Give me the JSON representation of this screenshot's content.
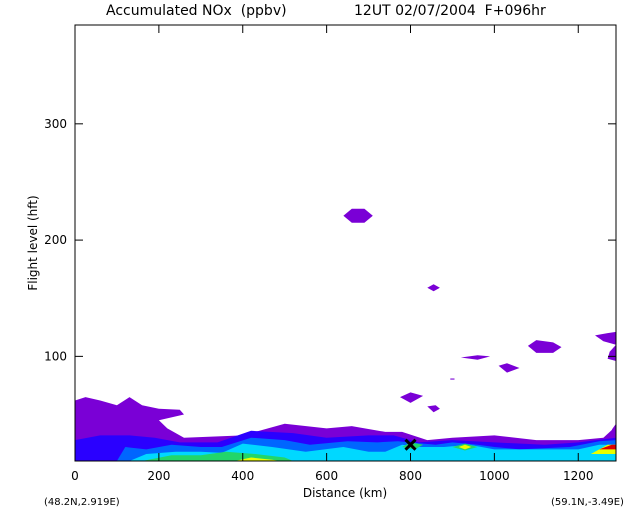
{
  "title_left": "Accumulated NOx  (ppbv)",
  "title_right": "12UT 02/07/2004  F+096hr",
  "corner_left": "(48.2N,2.919E)",
  "corner_right": "(59.1N,-3.49E)",
  "colors": {
    "purple": "#7a00d6",
    "dark_blue": "#2a00ff",
    "blue": "#0066ff",
    "cyan": "#00d8ff",
    "green": "#22d66a",
    "yellow": "#e8ff00",
    "orange": "#ffb000",
    "red": "#e00000",
    "marker": "#000000"
  },
  "chart_data": {
    "type": "heatmap",
    "title": "Accumulated NOx  (ppbv)",
    "xlabel": "Distance  (km)",
    "ylabel": "Flight level  (hft)",
    "xlim": [
      0,
      1290
    ],
    "ylim": [
      10,
      385
    ],
    "xticks": [
      0,
      200,
      400,
      600,
      800,
      1000,
      1200
    ],
    "yticks": [
      100,
      200,
      300
    ],
    "marker": {
      "symbol": "X",
      "x": 800,
      "y": 24
    },
    "blobs": [
      {
        "level": "purple",
        "points": [
          [
            0,
            10
          ],
          [
            0,
            62
          ],
          [
            25,
            65
          ],
          [
            60,
            62
          ],
          [
            100,
            58
          ],
          [
            130,
            65
          ],
          [
            160,
            58
          ],
          [
            200,
            55
          ],
          [
            250,
            54
          ],
          [
            260,
            50
          ],
          [
            200,
            45
          ],
          [
            220,
            38
          ],
          [
            260,
            30
          ],
          [
            400,
            32
          ],
          [
            500,
            42
          ],
          [
            600,
            38
          ],
          [
            660,
            40
          ],
          [
            740,
            35
          ],
          [
            780,
            35
          ],
          [
            840,
            28
          ],
          [
            900,
            30
          ],
          [
            1000,
            32
          ],
          [
            1100,
            28
          ],
          [
            1200,
            28
          ],
          [
            1260,
            30
          ],
          [
            1290,
            40
          ],
          [
            1290,
            10
          ]
        ]
      },
      {
        "level": "dark_blue",
        "points": [
          [
            0,
            10
          ],
          [
            0,
            28
          ],
          [
            60,
            32
          ],
          [
            130,
            32
          ],
          [
            190,
            30
          ],
          [
            250,
            26
          ],
          [
            340,
            26
          ],
          [
            420,
            36
          ],
          [
            520,
            34
          ],
          [
            600,
            30
          ],
          [
            700,
            32
          ],
          [
            760,
            32
          ],
          [
            820,
            26
          ],
          [
            900,
            28
          ],
          [
            1000,
            26
          ],
          [
            1120,
            24
          ],
          [
            1200,
            26
          ],
          [
            1290,
            30
          ],
          [
            1290,
            10
          ]
        ]
      },
      {
        "level": "blue",
        "points": [
          [
            100,
            10
          ],
          [
            120,
            22
          ],
          [
            170,
            20
          ],
          [
            230,
            24
          ],
          [
            300,
            22
          ],
          [
            350,
            22
          ],
          [
            420,
            30
          ],
          [
            500,
            28
          ],
          [
            560,
            24
          ],
          [
            650,
            27
          ],
          [
            720,
            26
          ],
          [
            770,
            27
          ],
          [
            860,
            24
          ],
          [
            900,
            26
          ],
          [
            960,
            24
          ],
          [
            1000,
            22
          ],
          [
            1060,
            20
          ],
          [
            1180,
            22
          ],
          [
            1250,
            27
          ],
          [
            1290,
            28
          ],
          [
            1290,
            10
          ]
        ]
      },
      {
        "level": "cyan",
        "points": [
          [
            130,
            10
          ],
          [
            170,
            16
          ],
          [
            240,
            18
          ],
          [
            300,
            18
          ],
          [
            350,
            17
          ],
          [
            400,
            25
          ],
          [
            470,
            22
          ],
          [
            550,
            18
          ],
          [
            640,
            22
          ],
          [
            700,
            18
          ],
          [
            740,
            18
          ],
          [
            780,
            24
          ],
          [
            820,
            22
          ],
          [
            880,
            22
          ],
          [
            940,
            24
          ],
          [
            1000,
            20
          ],
          [
            1200,
            20
          ],
          [
            1250,
            24
          ],
          [
            1290,
            24
          ],
          [
            1290,
            10
          ]
        ]
      },
      {
        "level": "green",
        "points": [
          [
            160,
            10
          ],
          [
            230,
            15
          ],
          [
            300,
            15
          ],
          [
            360,
            18
          ],
          [
            430,
            16
          ],
          [
            500,
            13
          ],
          [
            520,
            10
          ]
        ]
      },
      {
        "level": "yellow",
        "points": [
          [
            380,
            10
          ],
          [
            420,
            13
          ],
          [
            470,
            11
          ],
          [
            490,
            10
          ]
        ]
      },
      {
        "level": "yellow",
        "points": [
          [
            1230,
            16
          ],
          [
            1270,
            24
          ],
          [
            1290,
            24
          ],
          [
            1290,
            16
          ]
        ]
      },
      {
        "level": "red",
        "points": [
          [
            1250,
            20
          ],
          [
            1280,
            24
          ],
          [
            1290,
            24
          ],
          [
            1290,
            20
          ]
        ]
      },
      {
        "level": "green",
        "points": [
          [
            780,
            22
          ],
          [
            800,
            26
          ],
          [
            830,
            24
          ],
          [
            810,
            20
          ]
        ]
      },
      {
        "level": "green",
        "points": [
          [
            900,
            22
          ],
          [
            930,
            25
          ],
          [
            960,
            22
          ],
          [
            930,
            19
          ]
        ]
      },
      {
        "level": "yellow",
        "points": [
          [
            915,
            22
          ],
          [
            930,
            24
          ],
          [
            945,
            22
          ],
          [
            930,
            20
          ]
        ]
      },
      {
        "level": "purple",
        "points": [
          [
            640,
            221
          ],
          [
            660,
            227
          ],
          [
            690,
            227
          ],
          [
            710,
            221
          ],
          [
            690,
            215
          ],
          [
            660,
            215
          ]
        ]
      },
      {
        "level": "purple",
        "points": [
          [
            840,
            159
          ],
          [
            855,
            162
          ],
          [
            870,
            159
          ],
          [
            855,
            156
          ]
        ]
      },
      {
        "level": "purple",
        "points": [
          [
            1080,
            109
          ],
          [
            1100,
            114
          ],
          [
            1140,
            112
          ],
          [
            1160,
            108
          ],
          [
            1140,
            103
          ],
          [
            1100,
            103
          ]
        ]
      },
      {
        "level": "purple",
        "points": [
          [
            1240,
            118
          ],
          [
            1270,
            120
          ],
          [
            1290,
            121
          ],
          [
            1290,
            110
          ],
          [
            1260,
            113
          ]
        ]
      },
      {
        "level": "purple",
        "points": [
          [
            1270,
            98
          ],
          [
            1290,
            96
          ],
          [
            1290,
            110
          ],
          [
            1275,
            104
          ]
        ]
      },
      {
        "level": "purple",
        "points": [
          [
            920,
            99
          ],
          [
            960,
            101
          ],
          [
            990,
            100
          ],
          [
            960,
            97
          ]
        ]
      },
      {
        "level": "purple",
        "points": [
          [
            1010,
            92
          ],
          [
            1030,
            94
          ],
          [
            1060,
            90
          ],
          [
            1030,
            86
          ]
        ]
      },
      {
        "level": "purple",
        "points": [
          [
            775,
            65
          ],
          [
            800,
            69
          ],
          [
            830,
            66
          ],
          [
            800,
            60
          ]
        ]
      },
      {
        "level": "purple",
        "points": [
          [
            840,
            57
          ],
          [
            860,
            58
          ],
          [
            870,
            55
          ],
          [
            855,
            52
          ]
        ]
      },
      {
        "level": "purple",
        "points": [
          [
            1280,
            37
          ],
          [
            1290,
            42
          ],
          [
            1290,
            34
          ]
        ]
      },
      {
        "level": "purple",
        "points": [
          [
            895,
            81
          ],
          [
            905,
            81
          ],
          [
            905,
            80
          ],
          [
            895,
            80
          ]
        ]
      }
    ]
  }
}
